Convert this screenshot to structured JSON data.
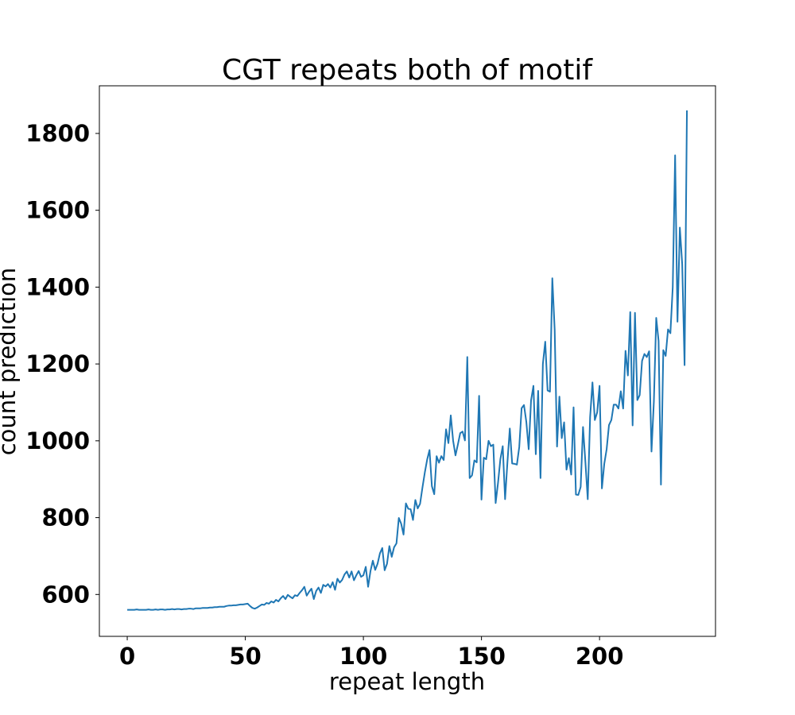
{
  "chart_data": {
    "type": "line",
    "title": "CGT repeats both of motif",
    "xlabel": "repeat length",
    "ylabel": "count prediction",
    "xlim": [
      -11.8,
      249.1
    ],
    "ylim": [
      491,
      1924
    ],
    "xticks": [
      0,
      50,
      100,
      150,
      200
    ],
    "yticks": [
      600,
      800,
      1000,
      1200,
      1400,
      1600,
      1800
    ],
    "grid": false,
    "legend": "none",
    "series_color": "#1f77b4",
    "series": [
      {
        "values": [
          560,
          560,
          560,
          560,
          561,
          560,
          560,
          560,
          560,
          561,
          560,
          560,
          561,
          560,
          561,
          561,
          560,
          561,
          561,
          562,
          561,
          562,
          562,
          561,
          562,
          562,
          563,
          563,
          562,
          564,
          564,
          564,
          565,
          565,
          565,
          566,
          566,
          567,
          567,
          568,
          568,
          568,
          570,
          571,
          571,
          572,
          572,
          573,
          574,
          574,
          575,
          576,
          570,
          565,
          563,
          566,
          570,
          574,
          573,
          578,
          576,
          582,
          579,
          586,
          582,
          590,
          596,
          588,
          599,
          594,
          590,
          598,
          596,
          604,
          611,
          620,
          597,
          607,
          615,
          588,
          609,
          618,
          604,
          625,
          621,
          627,
          618,
          632,
          612,
          641,
          631,
          638,
          652,
          660,
          644,
          660,
          637,
          650,
          661,
          646,
          650,
          672,
          620,
          661,
          688,
          664,
          680,
          707,
          721,
          663,
          680,
          726,
          698,
          723,
          733,
          799,
          784,
          756,
          837,
          823,
          822,
          794,
          846,
          824,
          836,
          878,
          917,
          951,
          976,
          882,
          861,
          960,
          943,
          960,
          950,
          1030,
          994,
          1066,
          1000,
          962,
          990,
          1020,
          1024,
          1001,
          1218,
          903,
          910,
          949,
          944,
          1117,
          847,
          956,
          952,
          1000,
          986,
          990,
          838,
          890,
          952,
          986,
          848,
          945,
          1032,
          941,
          940,
          938,
          984,
          1085,
          1093,
          1049,
          978,
          1105,
          1143,
          965,
          1130,
          903,
          1200,
          1258,
          1131,
          1128,
          1423,
          1289,
          985,
          1115,
          1007,
          1048,
          925,
          955,
          912,
          1087,
          860,
          859,
          880,
          1036,
          945,
          848,
          1061,
          1152,
          1054,
          1074,
          1143,
          876,
          940,
          978,
          1041,
          1054,
          1094,
          1094,
          1084,
          1129,
          1084,
          1234,
          1170,
          1335,
          1040,
          1333,
          1106,
          1119,
          1208,
          1226,
          1218,
          1233,
          972,
          1102,
          1320,
          1260,
          886,
          1236,
          1221,
          1290,
          1280,
          1400,
          1743,
          1310,
          1555,
          1460,
          1197,
          1860
        ]
      }
    ]
  }
}
